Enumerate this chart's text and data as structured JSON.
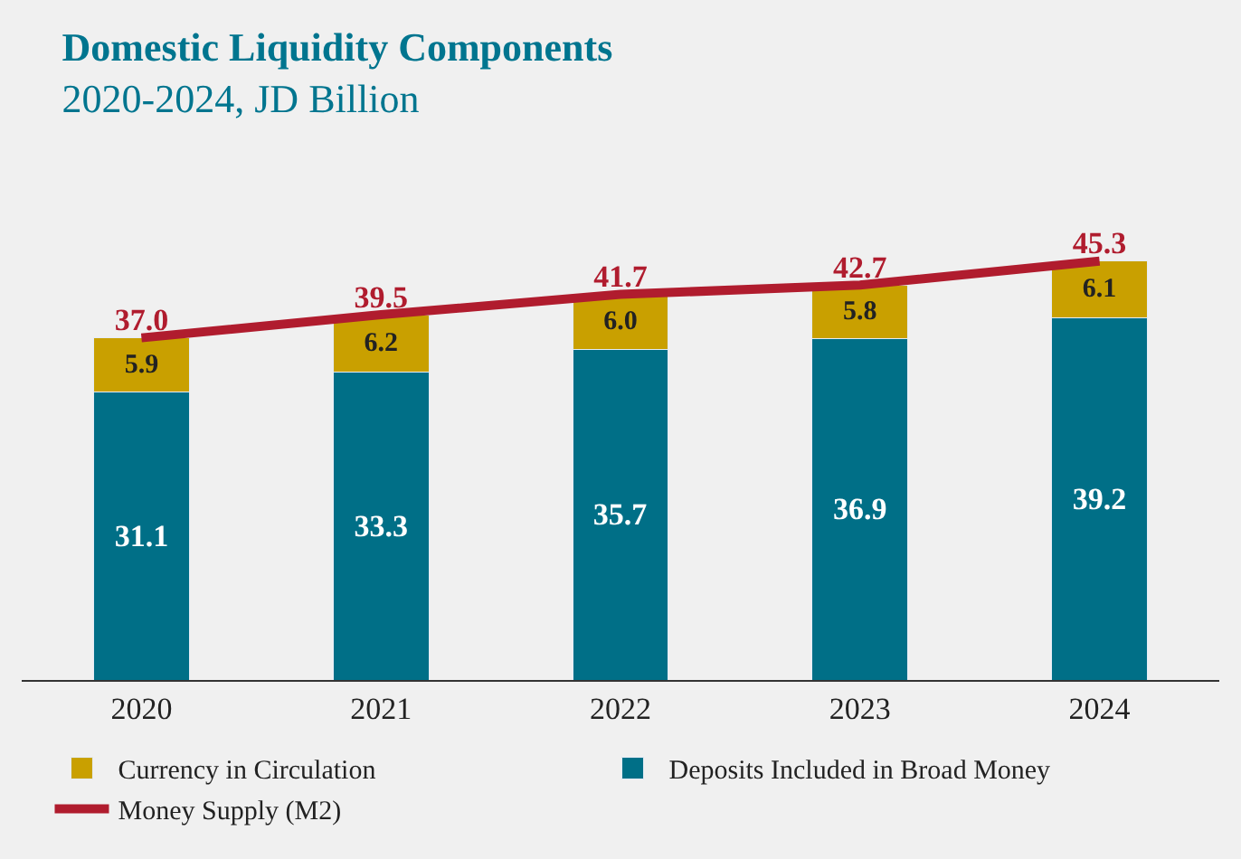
{
  "chart_data": {
    "type": "bar",
    "title": "Domestic Liquidity Components",
    "subtitle": "2020-2024, JD Billion",
    "categories": [
      "2020",
      "2021",
      "2022",
      "2023",
      "2024"
    ],
    "stacked": true,
    "legend": "bottom",
    "grid": false,
    "series": [
      {
        "name": "Deposits Included in Broad Money",
        "color": "#006f87",
        "values": [
          31.1,
          33.3,
          35.7,
          36.9,
          39.2
        ],
        "value_labels": [
          "31.1",
          "33.3",
          "35.7",
          "36.9",
          "39.2"
        ]
      },
      {
        "name": "Currency in Circulation",
        "color": "#c9a000",
        "values": [
          5.9,
          6.2,
          6.0,
          5.8,
          6.1
        ],
        "value_labels": [
          "5.9",
          "6.2",
          "6.0",
          "5.8",
          "6.1"
        ]
      },
      {
        "name": "Money Supply (M2)",
        "type": "line",
        "color": "#b01c2e",
        "values": [
          37.0,
          39.5,
          41.7,
          42.7,
          45.3
        ],
        "value_labels": [
          "37.0",
          "39.5",
          "41.7",
          "42.7",
          "45.3"
        ]
      }
    ]
  }
}
